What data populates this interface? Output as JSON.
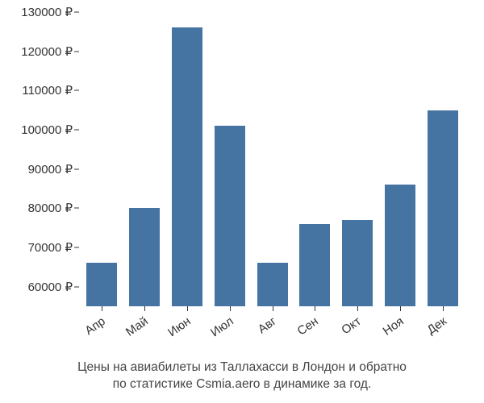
{
  "chart": {
    "type": "bar",
    "categories": [
      "Апр",
      "Май",
      "Июн",
      "Июл",
      "Авг",
      "Сен",
      "Окт",
      "Ноя",
      "Дек"
    ],
    "values": [
      66000,
      80000,
      126000,
      101000,
      66000,
      76000,
      77000,
      86000,
      105000
    ],
    "bar_color": "#4574a2",
    "background_color": "#ffffff",
    "ylim_min": 55000,
    "ylim_max": 130000,
    "ytick_min": 60000,
    "ytick_max": 130000,
    "ytick_step": 10000,
    "y_suffix": " ₽",
    "bar_width_ratio": 0.72,
    "label_fontsize": 15,
    "label_color": "#333333",
    "x_label_rotation": -35
  },
  "caption": {
    "line1": "Цены на авиабилеты из Таллахасси в Лондон и обратно",
    "line2": "по статистике Csmia.aero в динамике за год.",
    "fontsize": 15.5,
    "color": "#444444"
  }
}
